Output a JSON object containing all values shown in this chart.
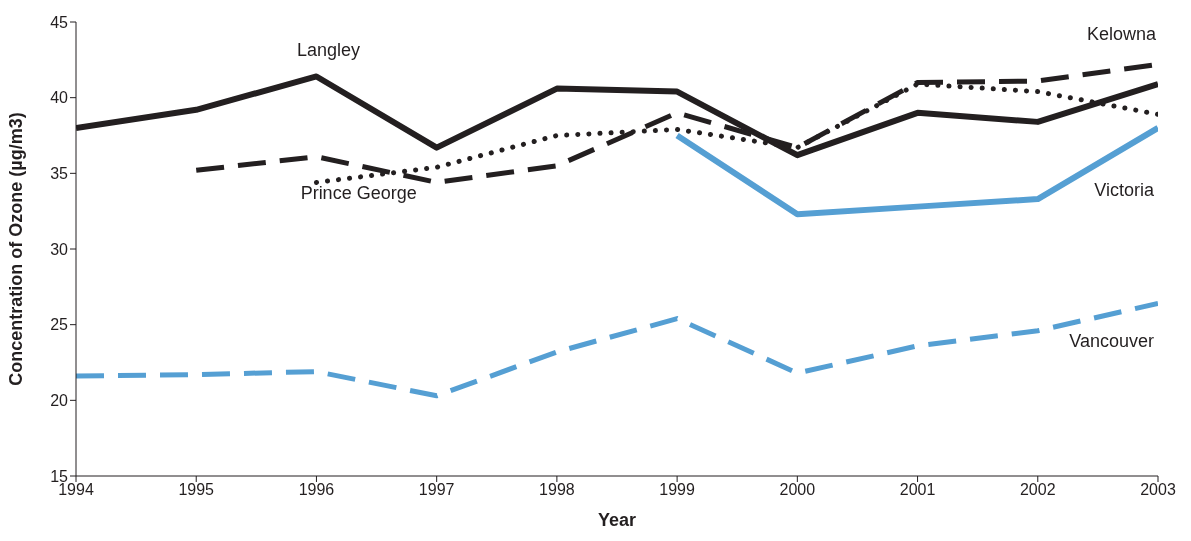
{
  "chart_data": {
    "type": "line",
    "xlabel": "Year",
    "ylabel": "Concentration of Ozone (µg/m3)",
    "x": [
      1994,
      1995,
      1996,
      1997,
      1998,
      1999,
      2000,
      2001,
      2002,
      2003
    ],
    "xlim": [
      1994,
      2003
    ],
    "xticks": [
      1994,
      1995,
      1996,
      1997,
      1998,
      1999,
      2000,
      2001,
      2002,
      2003
    ],
    "ylim": [
      15,
      45
    ],
    "yticks": [
      15,
      20,
      25,
      30,
      35,
      40,
      45
    ],
    "marker": "none",
    "series": [
      {
        "name": "Langley",
        "color": "#231f20",
        "line_style": "solid",
        "values": [
          38.0,
          39.2,
          41.4,
          36.7,
          40.6,
          40.4,
          36.2,
          39.0,
          38.4,
          40.9
        ]
      },
      {
        "name": "Kelowna",
        "color": "#231f20",
        "line_style": "dashed",
        "values": [
          null,
          35.2,
          36.1,
          34.4,
          35.5,
          39.0,
          36.7,
          41.0,
          41.1,
          42.2
        ]
      },
      {
        "name": "Prince George",
        "color": "#231f20",
        "line_style": "dotted",
        "values": [
          null,
          null,
          34.4,
          35.4,
          37.5,
          37.9,
          36.7,
          40.9,
          40.4,
          38.9
        ]
      },
      {
        "name": "Victoria",
        "color": "#559fd3",
        "line_style": "solid",
        "values": [
          null,
          null,
          null,
          null,
          null,
          37.5,
          32.3,
          32.8,
          33.3,
          38.0
        ]
      },
      {
        "name": "Vancouver",
        "color": "#559fd3",
        "line_style": "dashed",
        "values": [
          21.6,
          21.7,
          21.9,
          20.3,
          23.2,
          25.4,
          21.8,
          23.6,
          24.6,
          26.4
        ]
      }
    ]
  }
}
